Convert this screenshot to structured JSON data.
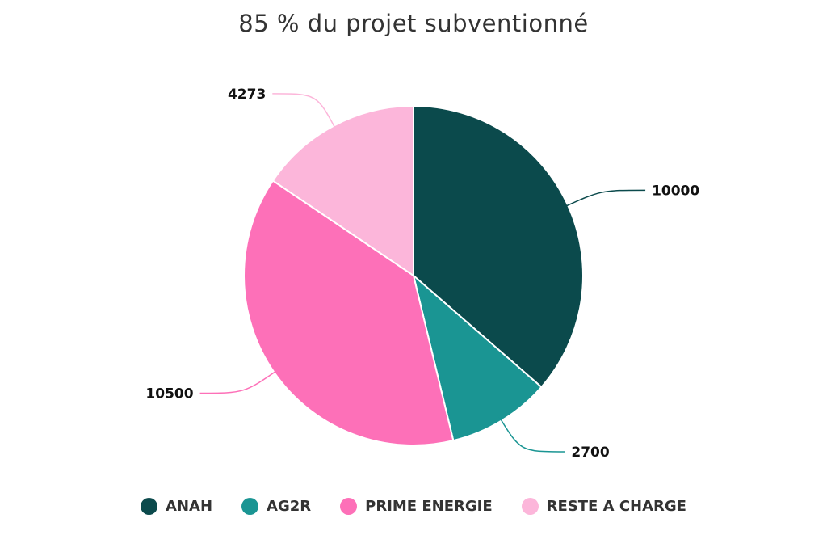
{
  "chart_data": {
    "type": "pie",
    "title": "85 % du projet subventionné",
    "categories": [
      "ANAH",
      "AG2R",
      "PRIME ENERGIE",
      "RESTE A CHARGE"
    ],
    "values": [
      10000,
      2700,
      10500,
      4273
    ],
    "colors": [
      "#0b4a4c",
      "#1a9593",
      "#fd70b8",
      "#fcb6da"
    ],
    "data_labels": [
      "10000",
      "2700",
      "10500",
      "4273"
    ],
    "legend_position": "bottom"
  }
}
